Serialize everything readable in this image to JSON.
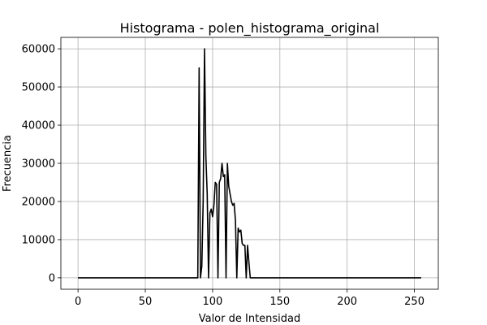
{
  "chart_data": {
    "type": "line",
    "title": "Histograma - polen_histograma_original",
    "xlabel": "Valor de Intensidad",
    "ylabel": "Frecuencia",
    "xlim": [
      -12.75,
      267.75
    ],
    "ylim": [
      -3000,
      63000
    ],
    "xticks": [
      0,
      50,
      100,
      150,
      200,
      250
    ],
    "yticks": [
      0,
      10000,
      20000,
      30000,
      40000,
      50000,
      60000
    ],
    "grid": true,
    "legend": false,
    "colors": {
      "series": "#000000",
      "grid": "#b0b0b0"
    },
    "series": [
      {
        "x": [
          0,
          89,
          90,
          91,
          92,
          93,
          94,
          95,
          96,
          97,
          98,
          99,
          100,
          101,
          102,
          103,
          104,
          105,
          106,
          107,
          108,
          109,
          110,
          111,
          112,
          113,
          114,
          115,
          116,
          117,
          118,
          119,
          120,
          121,
          122,
          123,
          124,
          125,
          126,
          127,
          128,
          129,
          130,
          131,
          132,
          133,
          134,
          135,
          136,
          255
        ],
        "values": [
          0,
          0,
          55000,
          0,
          3000,
          20000,
          60000,
          32000,
          22000,
          0,
          17000,
          18000,
          16000,
          19000,
          25000,
          24500,
          0,
          25000,
          26000,
          30000,
          26500,
          27000,
          0,
          30000,
          24000,
          22000,
          20000,
          19000,
          19500,
          15000,
          0,
          13000,
          12000,
          12500,
          9000,
          8500,
          8500,
          0,
          8500,
          4000,
          0,
          0,
          0,
          0,
          0,
          0,
          0,
          0,
          0,
          0
        ]
      }
    ]
  }
}
